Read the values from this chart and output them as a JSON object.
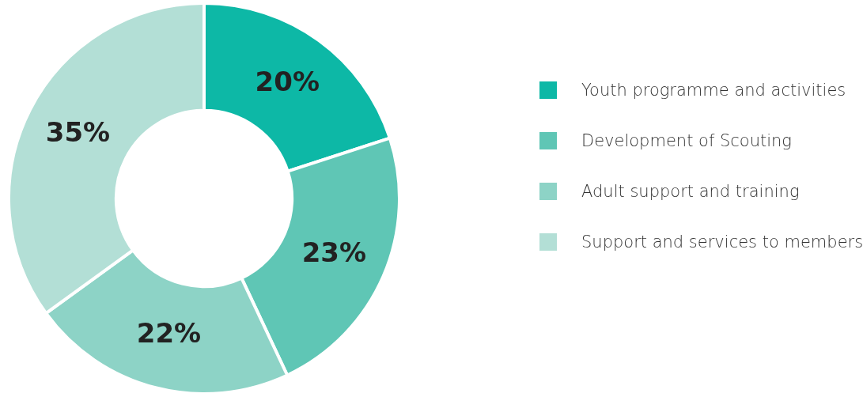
{
  "chart_data": {
    "type": "donut",
    "categories": [
      "Youth programme and activities",
      "Development of Scouting",
      "Adult support and training",
      "Support and services to members"
    ],
    "values": [
      20,
      23,
      22,
      35
    ],
    "colors": [
      "#0db8a6",
      "#5fc6b5",
      "#8dd3c6",
      "#b3dfd6"
    ],
    "value_labels": [
      "20%",
      "23%",
      "22%",
      "35%"
    ],
    "legend": "right"
  }
}
